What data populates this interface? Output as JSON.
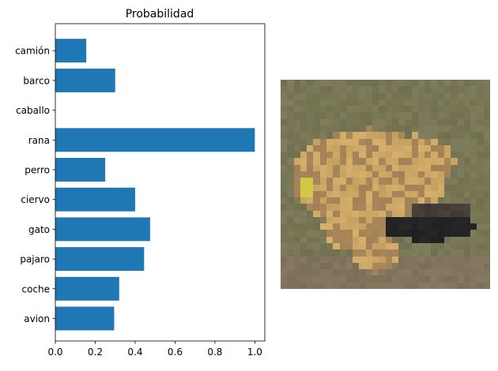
{
  "chart_data": {
    "type": "bar",
    "orientation": "horizontal",
    "title": "Probabilidad",
    "xlabel": "",
    "ylabel": "",
    "categories": [
      "avion",
      "coche",
      "pajaro",
      "gato",
      "ciervo",
      "perro",
      "rana",
      "caballo",
      "barco",
      "camión"
    ],
    "values": [
      0.295,
      0.32,
      0.445,
      0.475,
      0.4,
      0.25,
      1.0,
      0.0,
      0.3,
      0.155
    ],
    "xlim": [
      0.0,
      1.05
    ],
    "xticks": [
      "0.0",
      "0.2",
      "0.4",
      "0.6",
      "0.8",
      "1.0"
    ],
    "grid": false,
    "bar_color": "#1f77b4"
  },
  "image": {
    "description_name": "frog-image"
  }
}
